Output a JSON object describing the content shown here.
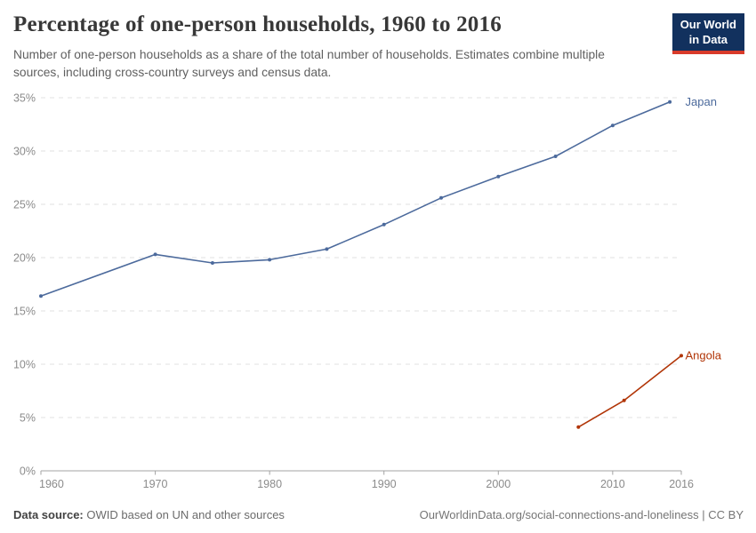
{
  "header": {
    "title": "Percentage of one-person households, 1960 to 2016",
    "subtitle": "Number of one-person households as a share of the total number of households. Estimates combine multiple sources, including cross-country surveys and census data.",
    "logo": {
      "line1": "Our World",
      "line2": "in Data"
    }
  },
  "chart_data": {
    "type": "line",
    "title": "Percentage of one-person households, 1960 to 2016",
    "xlabel": "",
    "ylabel": "",
    "xlim": [
      1960,
      2016
    ],
    "ylim": [
      0,
      35
    ],
    "xticks": [
      1960,
      1970,
      1980,
      1990,
      2000,
      2010,
      2016
    ],
    "yticks": [
      0,
      5,
      10,
      15,
      20,
      25,
      30,
      35
    ],
    "ytick_suffix": "%",
    "grid": "horizontal-dashed",
    "legend_position": "end-of-line-labels",
    "series": [
      {
        "name": "Japan",
        "color": "#4C6A9C",
        "points": [
          {
            "x": 1960,
            "y": 16.4
          },
          {
            "x": 1970,
            "y": 20.3
          },
          {
            "x": 1975,
            "y": 19.5
          },
          {
            "x": 1980,
            "y": 19.8
          },
          {
            "x": 1985,
            "y": 20.8
          },
          {
            "x": 1990,
            "y": 23.1
          },
          {
            "x": 1995,
            "y": 25.6
          },
          {
            "x": 2000,
            "y": 27.6
          },
          {
            "x": 2005,
            "y": 29.5
          },
          {
            "x": 2010,
            "y": 32.4
          },
          {
            "x": 2015,
            "y": 34.6
          }
        ]
      },
      {
        "name": "Angola",
        "color": "#B13507",
        "points": [
          {
            "x": 2007,
            "y": 4.1
          },
          {
            "x": 2011,
            "y": 6.6
          },
          {
            "x": 2016,
            "y": 10.8
          }
        ]
      }
    ]
  },
  "footer": {
    "source_label": "Data source:",
    "source_text": "OWID based on UN and other sources",
    "credit": "OurWorldinData.org/social-connections-and-loneliness | CC BY"
  },
  "colors": {
    "japan": "#4C6A9C",
    "angola": "#B13507",
    "gridline": "#e2e2e2",
    "axis": "#a3a3a3",
    "tick_label": "#8b8b8b",
    "logo_bg": "#12315e",
    "logo_accent": "#d93b2a"
  }
}
